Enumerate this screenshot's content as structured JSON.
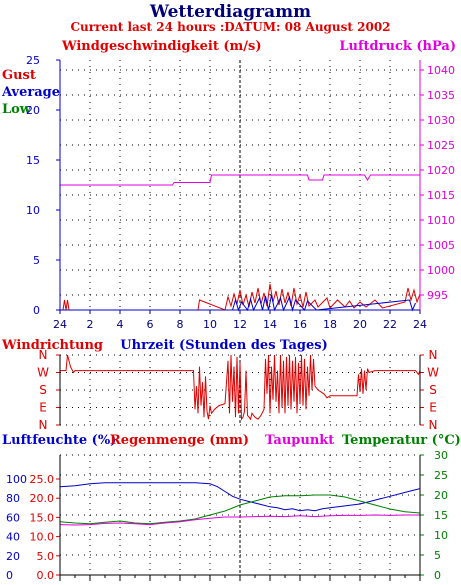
{
  "title": "Wetterdiagramm",
  "subtitle": "Current last 24 hours :DATUM: 08 August 2002",
  "colors": {
    "red": "#e00000",
    "blue": "#0000cc",
    "green": "#008000",
    "magenta": "#e000e0",
    "navy": "#00007a",
    "black": "#000000"
  },
  "chart_data": [
    {
      "type": "line",
      "title": "",
      "ylabel_left": "Windgeschwindigkeit (m/s)",
      "ylabel_right": "Luftdruck (hPa)",
      "xlabel": "Uhrzeit (Stunden des Tages)",
      "ylim_left": [
        0,
        25
      ],
      "ylim_right": [
        992,
        1042
      ],
      "yticks_left": [
        "0",
        "5",
        "10",
        "15",
        "20",
        "25"
      ],
      "yticks_right": [
        "995",
        "1000",
        "1005",
        "1010",
        "1015",
        "1020",
        "1025",
        "1030",
        "1035",
        "1040"
      ],
      "xticks": [
        "24",
        "2",
        "4",
        "6",
        "8",
        "10",
        "12",
        "14",
        "16",
        "18",
        "20",
        "22",
        "24"
      ],
      "grid": true,
      "legend": [
        "Gust",
        "Average",
        "Low"
      ],
      "series": [
        {
          "name": "Luftdruck (hPa)",
          "axis": "right",
          "x": [
            0,
            7.5,
            7.6,
            10,
            10.1,
            16.5,
            16.6,
            17.5,
            17.6,
            20.3,
            20.5,
            20.7,
            24
          ],
          "values": [
            1017,
            1017,
            1017.5,
            1017.5,
            1019,
            1019,
            1018,
            1018,
            1019,
            1019,
            1018,
            1019,
            1019
          ]
        },
        {
          "name": "Gust",
          "axis": "left",
          "x": [
            0.2,
            0.3,
            0.4,
            0.5,
            0.6,
            9.2,
            9.3,
            11.0,
            11.2,
            11.4,
            11.6,
            11.8,
            12.0,
            12.2,
            12.4,
            12.6,
            12.8,
            13.0,
            13.2,
            13.4,
            13.6,
            13.8,
            14.0,
            14.2,
            14.4,
            14.6,
            14.8,
            15.0,
            15.2,
            15.4,
            15.6,
            15.8,
            16.0,
            16.2,
            16.4,
            16.6,
            17.0,
            17.2,
            17.8,
            18.0,
            18.5,
            19.0,
            19.3,
            19.6,
            20.0,
            20.4,
            21.0,
            21.5,
            23.0,
            23.2,
            23.4,
            23.6,
            23.8,
            24.0
          ],
          "values": [
            0,
            1.0,
            0,
            1.0,
            0,
            0,
            1.0,
            0,
            1.3,
            0.4,
            1.6,
            0.6,
            2.0,
            0.5,
            1.5,
            0.3,
            1.8,
            0.7,
            2.2,
            0.6,
            1.7,
            0.4,
            2.6,
            0.8,
            1.9,
            0.5,
            2.1,
            0.7,
            1.8,
            0.4,
            2.2,
            0.6,
            1.5,
            0.3,
            1.8,
            0.4,
            1.0,
            0.3,
            1.2,
            0.2,
            1.0,
            0.3,
            0.9,
            0.2,
            0.8,
            0.3,
            1.0,
            0.2,
            0.8,
            2.2,
            1.0,
            2.0,
            0.8,
            1.6
          ]
        },
        {
          "name": "Average",
          "axis": "left",
          "x": [
            11.5,
            11.7,
            11.9,
            12.1,
            12.5,
            12.7,
            12.9,
            13.3,
            13.5,
            13.7,
            13.9,
            14.1,
            14.3,
            14.7,
            14.9,
            15.3,
            15.5,
            15.7,
            16.3,
            16.5,
            17.1,
            23.3,
            23.5,
            23.7
          ],
          "values": [
            0,
            1.0,
            0,
            0.8,
            0,
            1.1,
            0,
            1.2,
            0,
            1.4,
            0,
            1.5,
            0,
            1.2,
            0,
            1.3,
            0,
            1.0,
            0,
            0.9,
            0,
            1.0,
            0,
            0.7
          ]
        }
      ]
    },
    {
      "type": "line",
      "title": "",
      "ylabel": "Windrichtung",
      "yticks": [
        "N",
        "W",
        "S",
        "E",
        "N"
      ],
      "yticks_right": [
        "N",
        "W",
        "S",
        "E",
        "N"
      ],
      "xlim": [
        0,
        24
      ],
      "grid": true,
      "series": [
        {
          "name": "Windrichtung",
          "x": [
            0,
            0.4,
            0.5,
            0.7,
            0.9,
            1.0,
            8.9,
            9.0,
            9.1,
            9.2,
            9.3,
            9.4,
            9.5,
            9.6,
            9.7,
            9.8,
            9.9,
            10.0,
            10.1,
            10.3,
            10.6,
            11.0,
            11.2,
            11.3,
            11.4,
            11.5,
            11.6,
            11.7,
            11.8,
            11.9,
            12.0,
            12.1,
            12.2,
            12.3,
            12.4,
            12.5,
            12.6,
            12.7,
            12.8,
            12.9,
            13.0,
            13.2,
            13.4,
            13.6,
            13.7,
            13.8,
            13.9,
            14.0,
            14.1,
            14.2,
            14.3,
            14.4,
            14.5,
            14.6,
            14.7,
            14.8,
            14.9,
            15.0,
            15.1,
            15.2,
            15.3,
            15.4,
            15.5,
            15.6,
            15.7,
            15.8,
            15.9,
            16.0,
            16.1,
            16.2,
            16.3,
            16.4,
            16.5,
            16.6,
            16.7,
            16.8,
            16.9,
            17.0,
            17.2,
            17.4,
            17.6,
            17.8,
            18.0,
            19.0,
            19.8,
            19.9,
            20.0,
            20.1,
            20.2,
            20.3,
            20.4,
            20.5,
            20.6,
            21.0,
            23.5,
            23.7,
            23.9,
            24.0
          ],
          "values": [
            280,
            280,
            360,
            300,
            270,
            280,
            280,
            80,
            200,
            60,
            300,
            100,
            220,
            40,
            250,
            70,
            30,
            100,
            60,
            80,
            100,
            110,
            330,
            60,
            360,
            120,
            300,
            40,
            350,
            60,
            320,
            30,
            40,
            70,
            280,
            50,
            40,
            30,
            60,
            50,
            40,
            30,
            50,
            80,
            340,
            160,
            360,
            60,
            300,
            130,
            360,
            120,
            280,
            60,
            360,
            90,
            330,
            60,
            350,
            100,
            360,
            80,
            330,
            120,
            350,
            60,
            320,
            110,
            360,
            100,
            340,
            80,
            300,
            150,
            360,
            180,
            340,
            200,
            180,
            170,
            160,
            140,
            150,
            150,
            150,
            260,
            170,
            290,
            160,
            280,
            180,
            290,
            270,
            280,
            280,
            280,
            260,
            280
          ]
        }
      ]
    },
    {
      "type": "line",
      "title": "",
      "ylabel_left_outer": "Luftfeuchte (%)",
      "ylabel_left_inner": "Regenmenge (mm)",
      "ylabel_mid": "Taupunkt",
      "ylabel_right": "Temperatur (°C)",
      "yticks_humidity": [
        "0",
        "20",
        "40",
        "60",
        "80",
        "100"
      ],
      "yticks_rain": [
        "0.0",
        "5.0",
        "10.0",
        "15.0",
        "20.0",
        "25.0"
      ],
      "yticks_temp": [
        "0",
        "5",
        "10",
        "15",
        "20",
        "25",
        "30"
      ],
      "ylim_temp": [
        0,
        30
      ],
      "ylim_humidity": [
        0,
        125
      ],
      "xlim": [
        0,
        24
      ],
      "grid": true,
      "series": [
        {
          "name": "Luftfeuchte (%)",
          "axis": "humidity",
          "x": [
            0,
            1,
            2,
            3,
            4,
            5,
            6,
            7,
            8,
            9,
            10,
            10.5,
            11,
            11.5,
            12,
            12.5,
            13,
            13.5,
            14,
            14.5,
            15,
            15.5,
            16,
            16.5,
            17,
            17.5,
            18,
            19,
            20,
            21,
            22,
            23,
            24
          ],
          "values": [
            92,
            93,
            95,
            96,
            96,
            96,
            96,
            96,
            96,
            96,
            95,
            92,
            87,
            82,
            79,
            77,
            75,
            73,
            71,
            70,
            68,
            69,
            67,
            68,
            67,
            69,
            70,
            72,
            74,
            78,
            82,
            86,
            90
          ]
        },
        {
          "name": "Temperatur",
          "axis": "temp",
          "x": [
            0,
            1,
            2,
            3,
            4,
            5,
            6,
            7,
            8,
            9,
            10,
            11,
            12,
            13,
            14,
            15,
            16,
            17,
            18,
            19,
            20,
            21,
            22,
            23,
            24
          ],
          "values": [
            13.3,
            13.0,
            12.8,
            13.2,
            13.5,
            13.0,
            12.8,
            13.2,
            13.5,
            14.0,
            15.0,
            16.0,
            17.5,
            18.5,
            19.5,
            19.8,
            19.8,
            20.0,
            20.0,
            19.5,
            18.5,
            17.5,
            16.5,
            15.8,
            15.5
          ]
        },
        {
          "name": "Taupunkt",
          "axis": "temp",
          "x": [
            0,
            1,
            2,
            3,
            4,
            5,
            6,
            7,
            8,
            9,
            10,
            11,
            12,
            13,
            14,
            15,
            16,
            17,
            18,
            19,
            20,
            21,
            22,
            23,
            24
          ],
          "values": [
            12.6,
            12.5,
            12.6,
            12.9,
            13.0,
            12.8,
            12.6,
            13.0,
            13.3,
            13.8,
            14.2,
            14.5,
            14.5,
            14.6,
            14.7,
            14.6,
            14.8,
            14.6,
            14.8,
            14.9,
            14.9,
            15.0,
            14.9,
            15.0,
            15.0
          ]
        }
      ]
    }
  ]
}
